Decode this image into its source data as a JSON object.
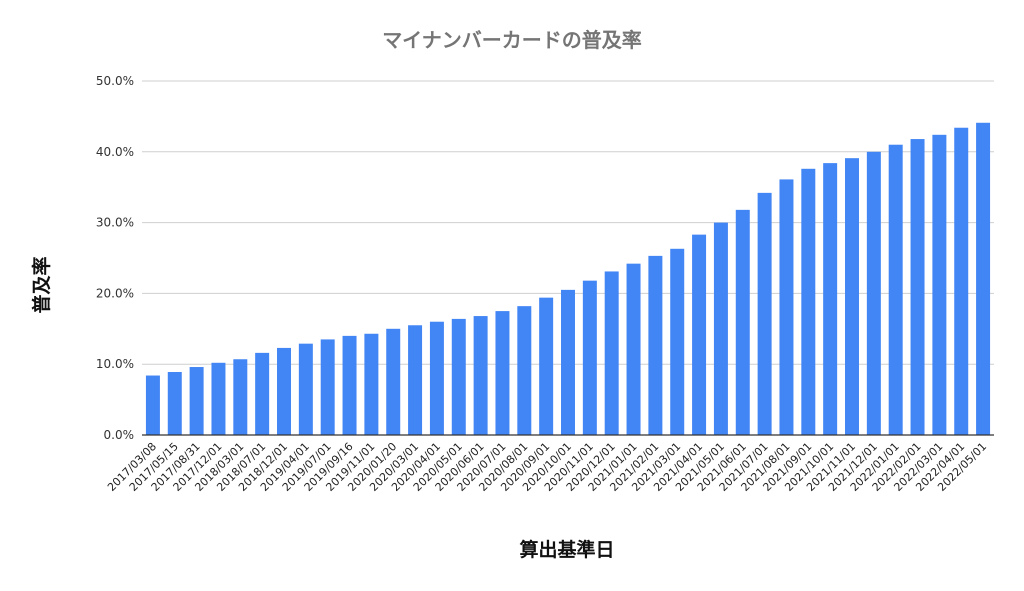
{
  "chart_data": {
    "type": "bar",
    "title": "マイナンバーカードの普及率",
    "xlabel": "算出基準日",
    "ylabel": "普及率",
    "ylim": [
      0,
      50
    ],
    "yticks": [
      "0.0%",
      "10.0%",
      "20.0%",
      "30.0%",
      "40.0%",
      "50.0%"
    ],
    "grid": true,
    "legend": "none",
    "bar_color": "#4285f4",
    "categories": [
      "2017/03/08",
      "2017/05/15",
      "2017/08/31",
      "2017/12/01",
      "2018/03/01",
      "2018/07/01",
      "2018/12/01",
      "2019/04/01",
      "2019/07/01",
      "2019/09/16",
      "2019/11/01",
      "2020/01/20",
      "2020/03/01",
      "2020/04/01",
      "2020/05/01",
      "2020/06/01",
      "2020/07/01",
      "2020/08/01",
      "2020/09/01",
      "2020/10/01",
      "2020/11/01",
      "2020/12/01",
      "2021/01/01",
      "2021/02/01",
      "2021/03/01",
      "2021/04/01",
      "2021/05/01",
      "2021/06/01",
      "2021/07/01",
      "2021/08/01",
      "2021/09/01",
      "2021/10/01",
      "2021/11/01",
      "2021/12/01",
      "2022/01/01",
      "2022/02/01",
      "2022/03/01",
      "2022/04/01",
      "2022/05/01"
    ],
    "values": [
      8.4,
      8.9,
      9.6,
      10.2,
      10.7,
      11.6,
      12.3,
      12.9,
      13.5,
      14.0,
      14.3,
      15.0,
      15.5,
      16.0,
      16.4,
      16.8,
      17.5,
      18.2,
      19.4,
      20.5,
      21.8,
      23.1,
      24.2,
      25.3,
      26.3,
      28.3,
      30.0,
      31.8,
      34.2,
      36.1,
      37.6,
      38.4,
      39.1,
      40.0,
      41.0,
      41.8,
      42.4,
      43.4,
      44.1
    ]
  }
}
